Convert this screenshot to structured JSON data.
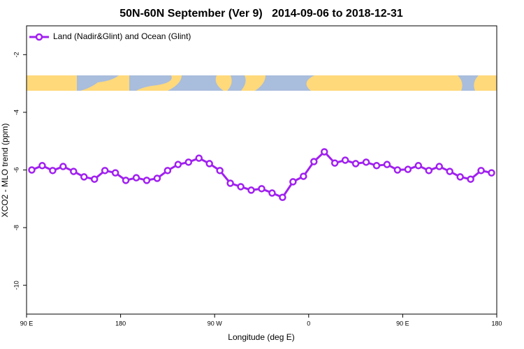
{
  "chart_data": {
    "type": "line",
    "title": "50N-60N September (Ver 9)   2014-09-06 to 2018-12-31",
    "xlabel": "Longitude (deg E)",
    "ylabel": "XCO2 - MLO trend (ppm)",
    "x": [
      95,
      105,
      115,
      125,
      135,
      145,
      155,
      165,
      175,
      185,
      195,
      205,
      215,
      225,
      235,
      245,
      255,
      265,
      275,
      285,
      295,
      305,
      315,
      325,
      335,
      345,
      355,
      365,
      375,
      385,
      395,
      405,
      415,
      425,
      435,
      445,
      455,
      465,
      475,
      485,
      495,
      505,
      515,
      525,
      535
    ],
    "series": [
      {
        "name": "Land (Nadir&Glint) and Ocean (Glint)",
        "color": "#a020f0",
        "values": [
          -6.0,
          -5.85,
          -6.02,
          -5.88,
          -6.05,
          -6.24,
          -6.32,
          -6.02,
          -6.1,
          -6.36,
          -6.27,
          -6.36,
          -6.29,
          -6.02,
          -5.81,
          -5.73,
          -5.59,
          -5.78,
          -6.02,
          -6.46,
          -6.58,
          -6.7,
          -6.65,
          -6.8,
          -6.95,
          -6.41,
          -6.22,
          -5.71,
          -5.37,
          -5.76,
          -5.66,
          -5.78,
          -5.73,
          -5.85,
          -5.81,
          -6.0,
          -5.98,
          -5.85,
          -6.02,
          -5.88,
          -6.05,
          -6.24,
          -6.32,
          -6.02,
          -6.1
        ]
      }
    ],
    "xlim": [
      90,
      540
    ],
    "xticks": [
      {
        "value": 90,
        "label": "90 E"
      },
      180,
      {
        "value": 270,
        "label": "90 W"
      },
      {
        "value": 360,
        "label": "0"
      },
      {
        "value": 450,
        "label": "90 E"
      },
      {
        "value": 540,
        "label": "180"
      }
    ],
    "ylim": [
      -11,
      -1
    ],
    "yticks": [
      -2,
      -4,
      -6,
      -8,
      -10
    ],
    "legend": "top-left"
  }
}
